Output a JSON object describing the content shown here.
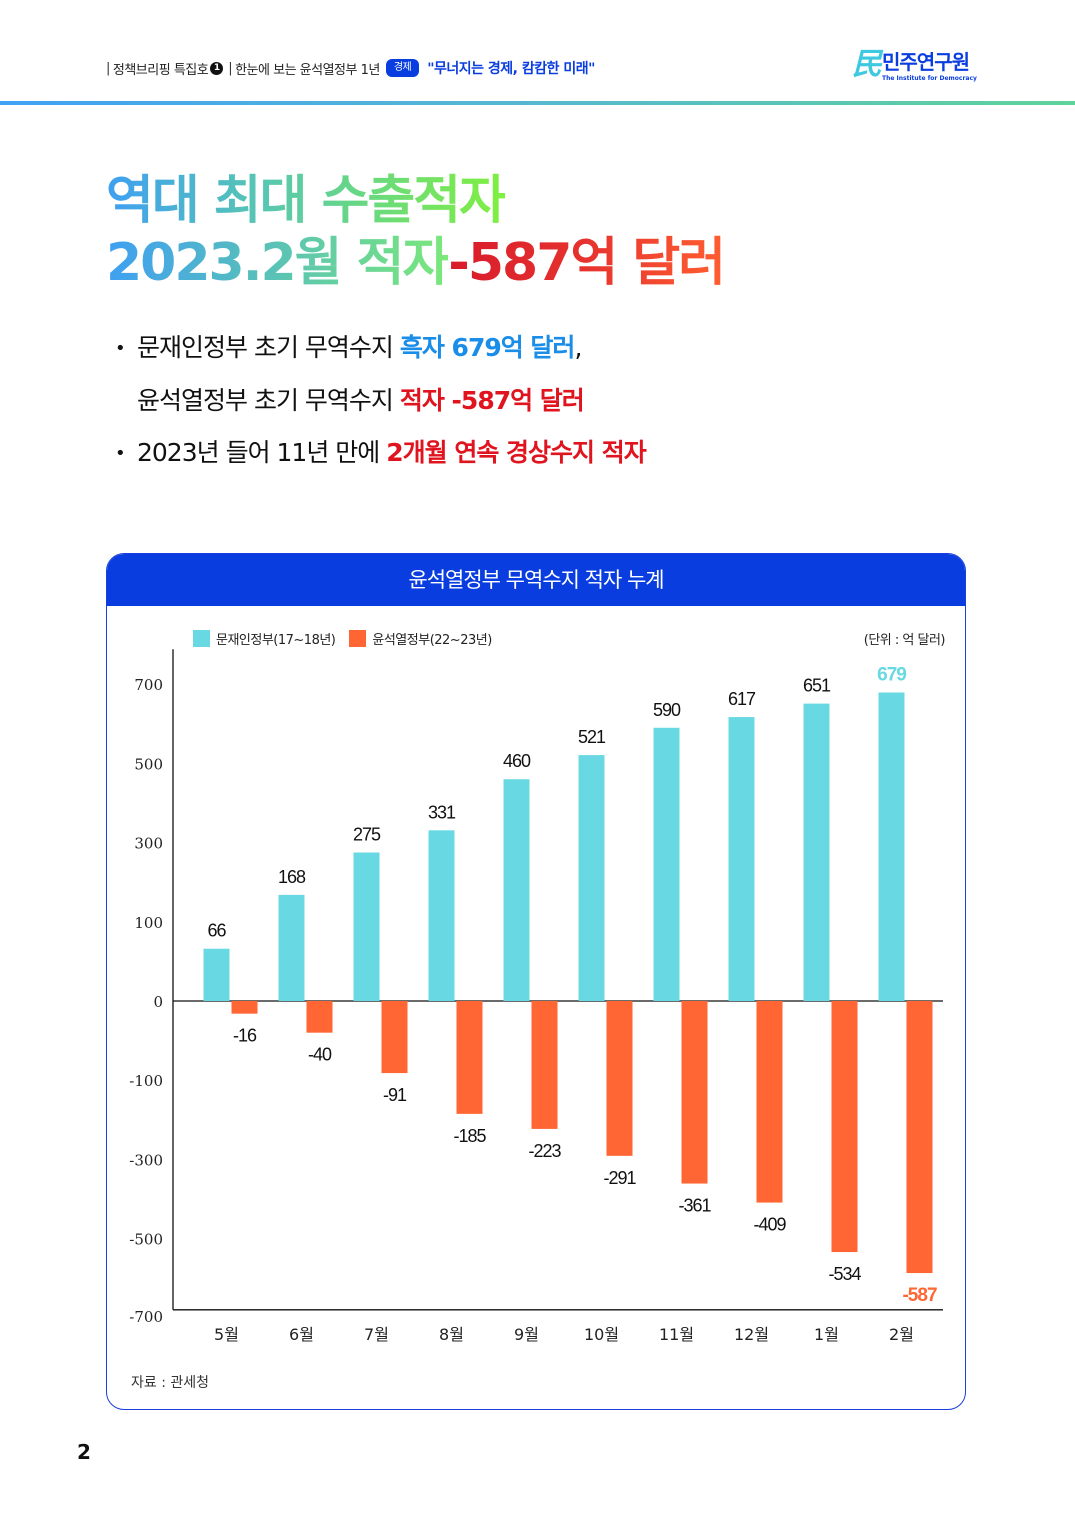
{
  "header": {
    "series": "정책브리핑 특집호",
    "issue_num": "1",
    "subtitle": "한눈에 보는 윤석열정부 1년",
    "category": "경제",
    "quote": "\"무너지는 경제, 캄캄한 미래\""
  },
  "logo": {
    "mark": "民",
    "name": "민주연구원",
    "sub": "The Institute for Democracy"
  },
  "title": {
    "line1": "역대 최대 수출적자",
    "line2a": "2023.2월 적자 ",
    "line2b": "-587억 달러"
  },
  "bullets": [
    {
      "plain": "문재인정부 초기 무역수지 ",
      "highlight": "흑자 679억 달러",
      "tail": ","
    },
    {
      "plain": "윤석열정부 초기 무역수지 ",
      "highlight": "적자 -587억 달러",
      "tail": ""
    },
    {
      "plain": "2023년 들어 11년 만에 ",
      "highlight": "2개월 연속 경상수지 적자",
      "tail": ""
    }
  ],
  "bullet_glyph": "•",
  "colors": {
    "brand_blue": "#0a3de0",
    "series_moon": "#68d8e2",
    "series_yoon": "#ff6633",
    "highlight_blue": "#1a8de8",
    "highlight_red": "#e0141e"
  },
  "chart_data": {
    "type": "bar",
    "title": "윤석열정부 무역수지 적자 누계",
    "unit_label": "(단위 : 억 달러)",
    "source": "자료 : 관세청",
    "categories": [
      "5월",
      "6월",
      "7월",
      "8월",
      "9월",
      "10월",
      "11월",
      "12월",
      "1월",
      "2월"
    ],
    "series": [
      {
        "name": "문재인정부(17~18년)",
        "color": "#68d8e2",
        "values": [
          66,
          168,
          275,
          331,
          460,
          521,
          590,
          617,
          651,
          679
        ]
      },
      {
        "name": "윤석열정부(22~23년)",
        "color": "#ff6633",
        "values": [
          -16,
          -40,
          -91,
          -185,
          -223,
          -291,
          -361,
          -409,
          -534,
          -587
        ]
      }
    ],
    "yticks": [
      700,
      500,
      300,
      100,
      0,
      -100,
      -300,
      -500,
      -700
    ],
    "ylim": [
      -700,
      700
    ],
    "y_scale_note": "piecewise: tick labels evenly spaced",
    "xlabel": "",
    "ylabel": "",
    "grid": false,
    "legend_position": "top-left",
    "emphasized_labels": {
      "0": {
        "series": 0,
        "index": 9
      },
      "1": {
        "series": 1,
        "index": 9
      }
    }
  },
  "page_number": "2"
}
